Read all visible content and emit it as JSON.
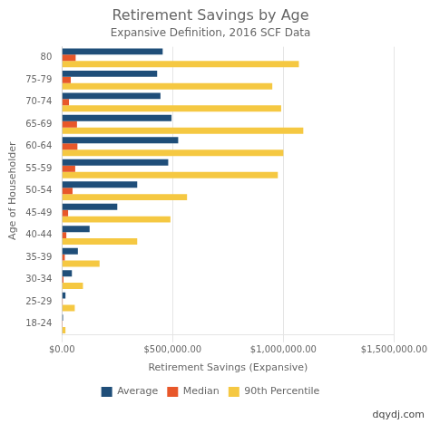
{
  "chart_data": {
    "type": "bar",
    "orientation": "horizontal",
    "title": "Retirement Savings by Age",
    "subtitle": "Expansive Definition, 2016 SCF Data",
    "xlabel": "Retirement Savings (Expansive)",
    "ylabel": "Age of Householder",
    "annotations": [
      "dqydj.com"
    ],
    "categories": [
      "18-24",
      "25-29",
      "30-34",
      "35-39",
      "40-44",
      "45-49",
      "50-54",
      "55-59",
      "60-64",
      "65-69",
      "70-74",
      "75-79",
      "80"
    ],
    "series": [
      {
        "name": "Average",
        "color": "#1F4E79",
        "values": [
          5000,
          16000,
          45000,
          72000,
          125000,
          250000,
          340000,
          480000,
          525000,
          495000,
          445000,
          430000,
          455000
        ]
      },
      {
        "name": "Median",
        "color": "#E8572A",
        "values": [
          800,
          3500,
          7000,
          13000,
          20000,
          28000,
          48000,
          60000,
          70000,
          68000,
          32000,
          40000,
          62000
        ]
      },
      {
        "name": "90th Percentile",
        "color": "#F5C842",
        "values": [
          16000,
          58000,
          95000,
          170000,
          340000,
          490000,
          565000,
          975000,
          1000000,
          1090000,
          990000,
          950000,
          1070000
        ]
      }
    ],
    "xlim": [
      0,
      1500000
    ],
    "xticks": [
      {
        "value": 0,
        "label": "$0.00"
      },
      {
        "value": 500000,
        "label": "$500,000.00"
      },
      {
        "value": 1000000,
        "label": "$1,000,000.00"
      },
      {
        "value": 1500000,
        "label": "$1,500,000.00"
      }
    ],
    "grid": true,
    "legend": "bottom"
  }
}
